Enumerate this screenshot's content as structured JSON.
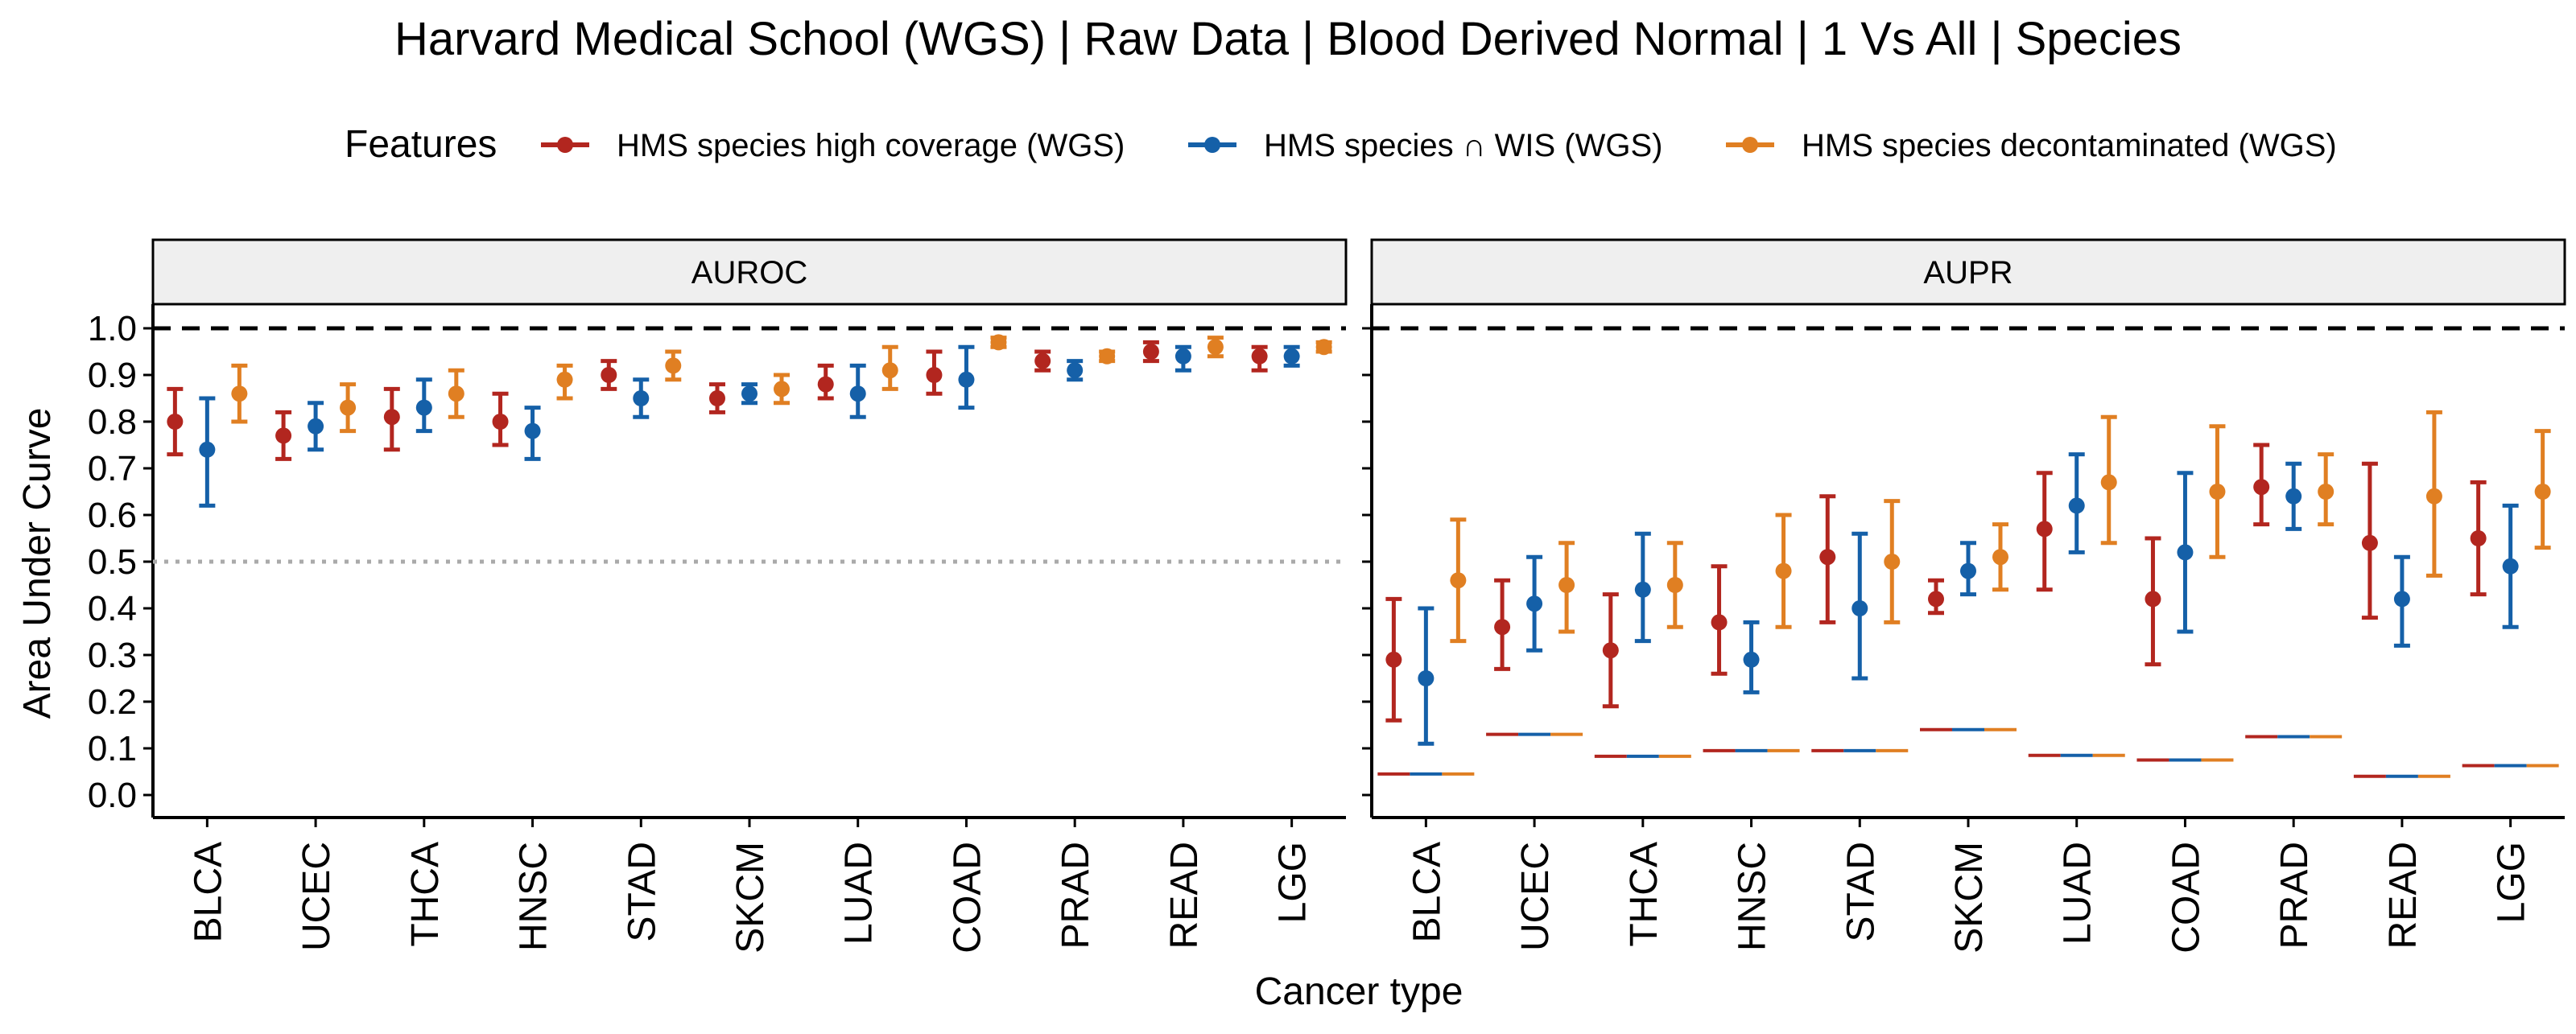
{
  "chart_data": {
    "type": "scatter",
    "title": "Harvard Medical School (WGS) | Raw Data | Blood Derived Normal | 1 Vs All | Species",
    "xlabel": "Cancer type",
    "ylabel": "Area Under Curve",
    "ylim": [
      0.0,
      1.0
    ],
    "yticks": [
      "0.0",
      "0.1",
      "0.2",
      "0.3",
      "0.4",
      "0.5",
      "0.6",
      "0.7",
      "0.8",
      "0.9",
      "1.0"
    ],
    "legend": {
      "title": "Features",
      "position": "top"
    },
    "categories": [
      "BLCA",
      "UCEC",
      "THCA",
      "HNSC",
      "STAD",
      "SKCM",
      "LUAD",
      "COAD",
      "PRAD",
      "READ",
      "LGG"
    ],
    "series": [
      {
        "name": "HMS species high coverage (WGS)",
        "color": "#B2261F"
      },
      {
        "name": "HMS species ∩ WIS (WGS)",
        "color": "#1560A8"
      },
      {
        "name": "HMS species decontaminated (WGS)",
        "color": "#E07F22"
      }
    ],
    "panels": [
      {
        "label": "AUROC",
        "reference_lines": [
          {
            "y": 1.0,
            "style": "dashed",
            "color": "#000000"
          },
          {
            "y": 0.5,
            "style": "dotted",
            "color": "#aaaaaa"
          }
        ],
        "values": [
          [
            [
              0.8,
              0.73,
              0.87
            ],
            [
              0.74,
              0.62,
              0.85
            ],
            [
              0.86,
              0.8,
              0.92
            ]
          ],
          [
            [
              0.77,
              0.72,
              0.82
            ],
            [
              0.79,
              0.74,
              0.84
            ],
            [
              0.83,
              0.78,
              0.88
            ]
          ],
          [
            [
              0.81,
              0.74,
              0.87
            ],
            [
              0.83,
              0.78,
              0.89
            ],
            [
              0.86,
              0.81,
              0.91
            ]
          ],
          [
            [
              0.8,
              0.75,
              0.86
            ],
            [
              0.78,
              0.72,
              0.83
            ],
            [
              0.89,
              0.85,
              0.92
            ]
          ],
          [
            [
              0.9,
              0.87,
              0.93
            ],
            [
              0.85,
              0.81,
              0.89
            ],
            [
              0.92,
              0.89,
              0.95
            ]
          ],
          [
            [
              0.85,
              0.82,
              0.88
            ],
            [
              0.86,
              0.84,
              0.88
            ],
            [
              0.87,
              0.84,
              0.9
            ]
          ],
          [
            [
              0.88,
              0.85,
              0.92
            ],
            [
              0.86,
              0.81,
              0.92
            ],
            [
              0.91,
              0.87,
              0.96
            ]
          ],
          [
            [
              0.9,
              0.86,
              0.95
            ],
            [
              0.89,
              0.83,
              0.96
            ],
            [
              0.97,
              0.96,
              0.98
            ]
          ],
          [
            [
              0.93,
              0.91,
              0.95
            ],
            [
              0.91,
              0.89,
              0.93
            ],
            [
              0.94,
              0.93,
              0.95
            ]
          ],
          [
            [
              0.95,
              0.93,
              0.97
            ],
            [
              0.94,
              0.91,
              0.96
            ],
            [
              0.96,
              0.94,
              0.98
            ]
          ],
          [
            [
              0.94,
              0.91,
              0.96
            ],
            [
              0.94,
              0.92,
              0.96
            ],
            [
              0.96,
              0.95,
              0.97
            ]
          ]
        ],
        "baselines": []
      },
      {
        "label": "AUPR",
        "reference_lines": [
          {
            "y": 1.0,
            "style": "dashed",
            "color": "#000000"
          }
        ],
        "values": [
          [
            [
              0.29,
              0.16,
              0.42
            ],
            [
              0.25,
              0.11,
              0.4
            ],
            [
              0.46,
              0.33,
              0.59
            ]
          ],
          [
            [
              0.36,
              0.27,
              0.46
            ],
            [
              0.41,
              0.31,
              0.51
            ],
            [
              0.45,
              0.35,
              0.54
            ]
          ],
          [
            [
              0.31,
              0.19,
              0.43
            ],
            [
              0.44,
              0.33,
              0.56
            ],
            [
              0.45,
              0.36,
              0.54
            ]
          ],
          [
            [
              0.37,
              0.26,
              0.49
            ],
            [
              0.29,
              0.22,
              0.37
            ],
            [
              0.48,
              0.36,
              0.6
            ]
          ],
          [
            [
              0.51,
              0.37,
              0.64
            ],
            [
              0.4,
              0.25,
              0.56
            ],
            [
              0.5,
              0.37,
              0.63
            ]
          ],
          [
            [
              0.42,
              0.39,
              0.46
            ],
            [
              0.48,
              0.43,
              0.54
            ],
            [
              0.51,
              0.44,
              0.58
            ]
          ],
          [
            [
              0.57,
              0.44,
              0.69
            ],
            [
              0.62,
              0.52,
              0.73
            ],
            [
              0.67,
              0.54,
              0.81
            ]
          ],
          [
            [
              0.42,
              0.28,
              0.55
            ],
            [
              0.52,
              0.35,
              0.69
            ],
            [
              0.65,
              0.51,
              0.79
            ]
          ],
          [
            [
              0.66,
              0.58,
              0.75
            ],
            [
              0.64,
              0.57,
              0.71
            ],
            [
              0.65,
              0.58,
              0.73
            ]
          ],
          [
            [
              0.54,
              0.38,
              0.71
            ],
            [
              0.42,
              0.32,
              0.51
            ],
            [
              0.64,
              0.47,
              0.82
            ]
          ],
          [
            [
              0.55,
              0.43,
              0.67
            ],
            [
              0.49,
              0.36,
              0.62
            ],
            [
              0.65,
              0.53,
              0.78
            ]
          ]
        ],
        "baselines": [
          0.045,
          0.13,
          0.083,
          0.095,
          0.095,
          0.14,
          0.085,
          0.075,
          0.125,
          0.04,
          0.063
        ]
      }
    ]
  }
}
